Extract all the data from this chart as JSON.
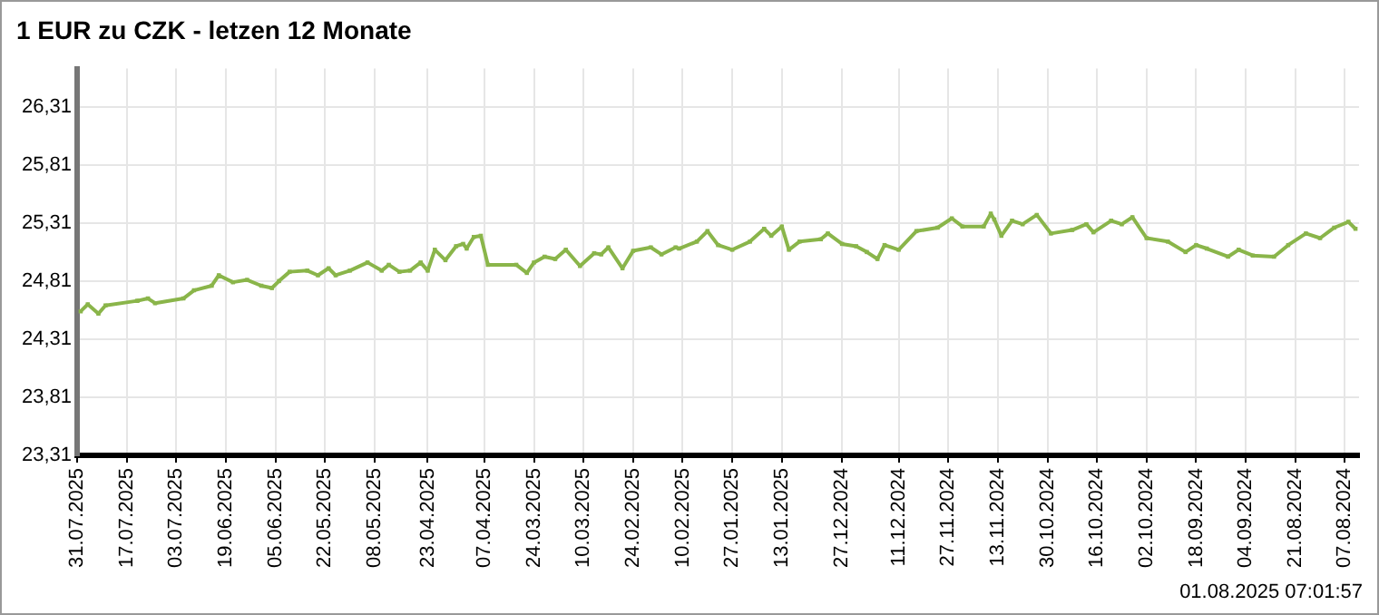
{
  "chart_data": {
    "type": "line",
    "title": "1 EUR zu CZK - letzen 12 Monate",
    "annotations": [
      "01.08.2025 07:01:57"
    ],
    "x": [
      "2025-07-30",
      "2025-07-28",
      "2025-07-25",
      "2025-07-23",
      "2025-07-14",
      "2025-07-11",
      "2025-07-09",
      "2025-07-01",
      "2025-06-28",
      "2025-06-23",
      "2025-06-21",
      "2025-06-17",
      "2025-06-13",
      "2025-06-09",
      "2025-06-06",
      "2025-06-04",
      "2025-06-01",
      "2025-05-27",
      "2025-05-24",
      "2025-05-21",
      "2025-05-19",
      "2025-05-15",
      "2025-05-10",
      "2025-05-06",
      "2025-05-04",
      "2025-05-01",
      "2025-04-28",
      "2025-04-25",
      "2025-04-23",
      "2025-04-21",
      "2025-04-18",
      "2025-04-15",
      "2025-04-13",
      "2025-04-12",
      "2025-04-10",
      "2025-04-08",
      "2025-04-06",
      "2025-03-29",
      "2025-03-26",
      "2025-03-24",
      "2025-03-21",
      "2025-03-18",
      "2025-03-15",
      "2025-03-11",
      "2025-03-07",
      "2025-03-05",
      "2025-03-03",
      "2025-02-27",
      "2025-02-24",
      "2025-02-19",
      "2025-02-16",
      "2025-02-12",
      "2025-02-11",
      "2025-02-06",
      "2025-02-03",
      "2025-01-31",
      "2025-01-27",
      "2025-01-22",
      "2025-01-18",
      "2025-01-16",
      "2025-01-13",
      "2025-01-11",
      "2025-01-08",
      "2025-01-02",
      "2024-12-31",
      "2024-12-27",
      "2024-12-23",
      "2024-12-20",
      "2024-12-17",
      "2024-12-15",
      "2024-12-11",
      "2024-12-06",
      "2024-11-30",
      "2024-11-26",
      "2024-11-23",
      "2024-11-17",
      "2024-11-15",
      "2024-11-14",
      "2024-11-12",
      "2024-11-09",
      "2024-11-06",
      "2024-11-02",
      "2024-10-29",
      "2024-10-23",
      "2024-10-19",
      "2024-10-17",
      "2024-10-12",
      "2024-10-09",
      "2024-10-06",
      "2024-10-02",
      "2024-09-26",
      "2024-09-21",
      "2024-09-18",
      "2024-09-15",
      "2024-09-09",
      "2024-09-06",
      "2024-09-02",
      "2024-08-27",
      "2024-08-23",
      "2024-08-18",
      "2024-08-14",
      "2024-08-10",
      "2024-08-06",
      "2024-08-04"
    ],
    "series": [
      {
        "color": "#8ab54a",
        "values": [
          24.55,
          24.61,
          24.53,
          24.6,
          24.64,
          24.66,
          24.62,
          24.66,
          24.73,
          24.77,
          24.86,
          24.8,
          24.82,
          24.77,
          24.75,
          24.81,
          24.89,
          24.9,
          24.86,
          24.92,
          24.86,
          24.9,
          24.97,
          24.9,
          24.95,
          24.89,
          24.9,
          24.97,
          24.9,
          25.08,
          24.99,
          25.11,
          25.13,
          25.09,
          25.19,
          25.2,
          24.95,
          24.95,
          24.88,
          24.97,
          25.02,
          25.0,
          25.08,
          24.94,
          25.05,
          25.04,
          25.1,
          24.92,
          25.07,
          25.1,
          25.04,
          25.1,
          25.09,
          25.15,
          25.24,
          25.12,
          25.08,
          25.15,
          25.26,
          25.2,
          25.28,
          25.08,
          25.15,
          25.17,
          25.22,
          25.13,
          25.11,
          25.06,
          25.0,
          25.12,
          25.08,
          25.24,
          25.27,
          25.35,
          25.28,
          25.28,
          25.39,
          25.34,
          25.2,
          25.33,
          25.3,
          25.38,
          25.22,
          25.25,
          25.3,
          25.23,
          25.33,
          25.3,
          25.36,
          25.18,
          25.15,
          25.06,
          25.12,
          25.09,
          25.02,
          25.08,
          25.03,
          25.02,
          25.12,
          25.22,
          25.18,
          25.27,
          25.32,
          25.26
        ]
      }
    ],
    "xlim": [
      "2025-07-31",
      "2024-08-03"
    ],
    "xticks": [
      {
        "value": "2025-07-31",
        "label": "31.07.2025"
      },
      {
        "value": "2025-07-17",
        "label": "17.07.2025"
      },
      {
        "value": "2025-07-03",
        "label": "03.07.2025"
      },
      {
        "value": "2025-06-19",
        "label": "19.06.2025"
      },
      {
        "value": "2025-06-05",
        "label": "05.06.2025"
      },
      {
        "value": "2025-05-22",
        "label": "22.05.2025"
      },
      {
        "value": "2025-05-08",
        "label": "08.05.2025"
      },
      {
        "value": "2025-04-23",
        "label": "23.04.2025"
      },
      {
        "value": "2025-04-07",
        "label": "07.04.2025"
      },
      {
        "value": "2025-03-24",
        "label": "24.03.2025"
      },
      {
        "value": "2025-03-10",
        "label": "10.03.2025"
      },
      {
        "value": "2025-02-24",
        "label": "24.02.2025"
      },
      {
        "value": "2025-02-10",
        "label": "10.02.2025"
      },
      {
        "value": "2025-01-27",
        "label": "27.01.2025"
      },
      {
        "value": "2025-01-13",
        "label": "13.01.2025"
      },
      {
        "value": "2024-12-27",
        "label": "27.12.2024"
      },
      {
        "value": "2024-12-11",
        "label": "11.12.2024"
      },
      {
        "value": "2024-11-27",
        "label": "27.11.2024"
      },
      {
        "value": "2024-11-13",
        "label": "13.11.2024"
      },
      {
        "value": "2024-10-30",
        "label": "30.10.2024"
      },
      {
        "value": "2024-10-16",
        "label": "16.10.2024"
      },
      {
        "value": "2024-10-02",
        "label": "02.10.2024"
      },
      {
        "value": "2024-09-18",
        "label": "18.09.2024"
      },
      {
        "value": "2024-09-04",
        "label": "04.09.2024"
      },
      {
        "value": "2024-08-21",
        "label": "21.08.2024"
      },
      {
        "value": "2024-08-07",
        "label": "07.08.2024"
      }
    ],
    "ylim": [
      23.31,
      26.64
    ],
    "yticks": [
      {
        "value": 23.31,
        "label": "23,31"
      },
      {
        "value": 23.81,
        "label": "23,81"
      },
      {
        "value": 24.31,
        "label": "24,31"
      },
      {
        "value": 24.81,
        "label": "24,81"
      },
      {
        "value": 25.31,
        "label": "25,31"
      },
      {
        "value": 25.81,
        "label": "25,81"
      },
      {
        "value": 26.31,
        "label": "26,31"
      }
    ],
    "grid": true,
    "legend": false,
    "marker": "square",
    "line_style": "solid"
  }
}
